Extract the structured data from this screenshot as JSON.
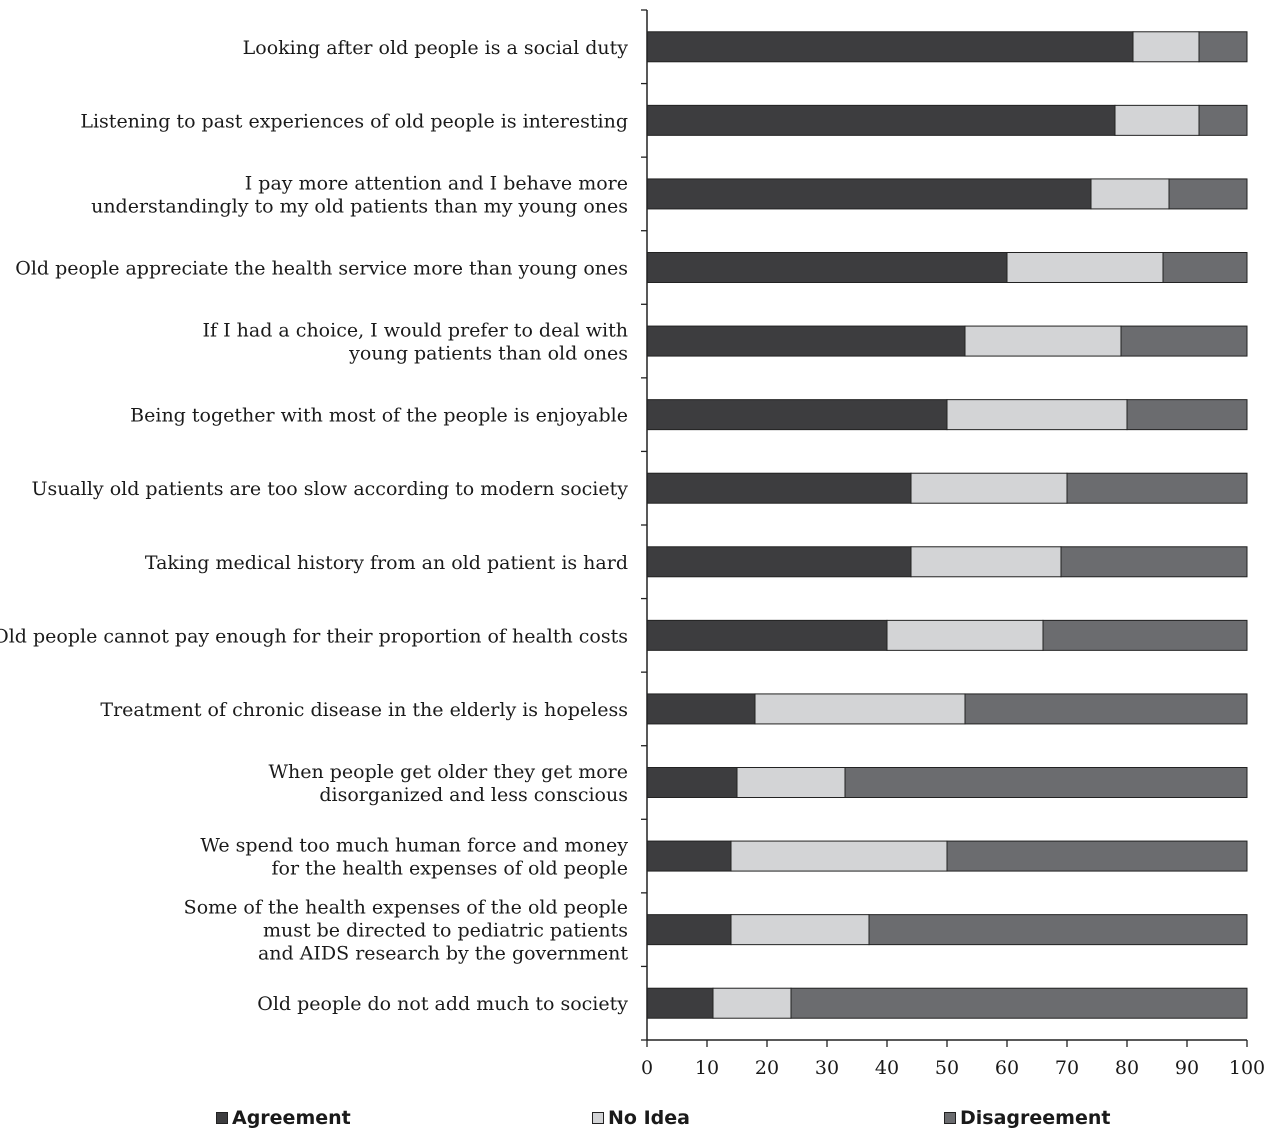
{
  "chart_data": {
    "type": "bar",
    "orientation": "horizontal",
    "stacked": true,
    "categories": [
      [
        "Looking after old people is a social duty"
      ],
      [
        "Listening to past experiences of old people is interesting"
      ],
      [
        "I pay more attention and I behave more",
        "understandingly to my old patients than my young ones"
      ],
      [
        "Old people appreciate the health service more than young ones"
      ],
      [
        "If I had a choice, I would prefer to deal with",
        "young patients than old ones"
      ],
      [
        "Being together with most of the people is enjoyable"
      ],
      [
        "Usually old patients are too slow according to modern society"
      ],
      [
        "Taking medical history from an old patient is hard"
      ],
      [
        "Old people cannot pay enough for their proportion of health costs"
      ],
      [
        "Treatment of chronic disease in the elderly is hopeless"
      ],
      [
        "When people get older they get more",
        "disorganized and less conscious"
      ],
      [
        "We spend too much human force and money",
        "for the health expenses of old people"
      ],
      [
        "Some of the health expenses of the old people",
        "must be directed to pediatric patients",
        "and AIDS research by the government"
      ],
      [
        "Old people do not add much to society"
      ]
    ],
    "series": [
      {
        "name": "Agreement",
        "color": "#3d3d3f",
        "values": [
          81,
          78,
          74,
          60,
          53,
          50,
          44,
          44,
          40,
          18,
          15,
          14,
          14,
          11
        ]
      },
      {
        "name": "No Idea",
        "color": "#d3d4d6",
        "values": [
          11,
          14,
          13,
          26,
          26,
          30,
          26,
          25,
          26,
          35,
          18,
          36,
          23,
          13
        ]
      },
      {
        "name": "Disagreement",
        "color": "#6b6c6f",
        "values": [
          8,
          8,
          13,
          14,
          21,
          20,
          30,
          31,
          34,
          47,
          67,
          50,
          63,
          76
        ]
      }
    ],
    "xlim": [
      0,
      100
    ],
    "xticks": [
      "0",
      "10",
      "20",
      "30",
      "40",
      "50",
      "60",
      "70",
      "80",
      "90",
      "100"
    ],
    "grid": false,
    "legend_position": "bottom"
  }
}
